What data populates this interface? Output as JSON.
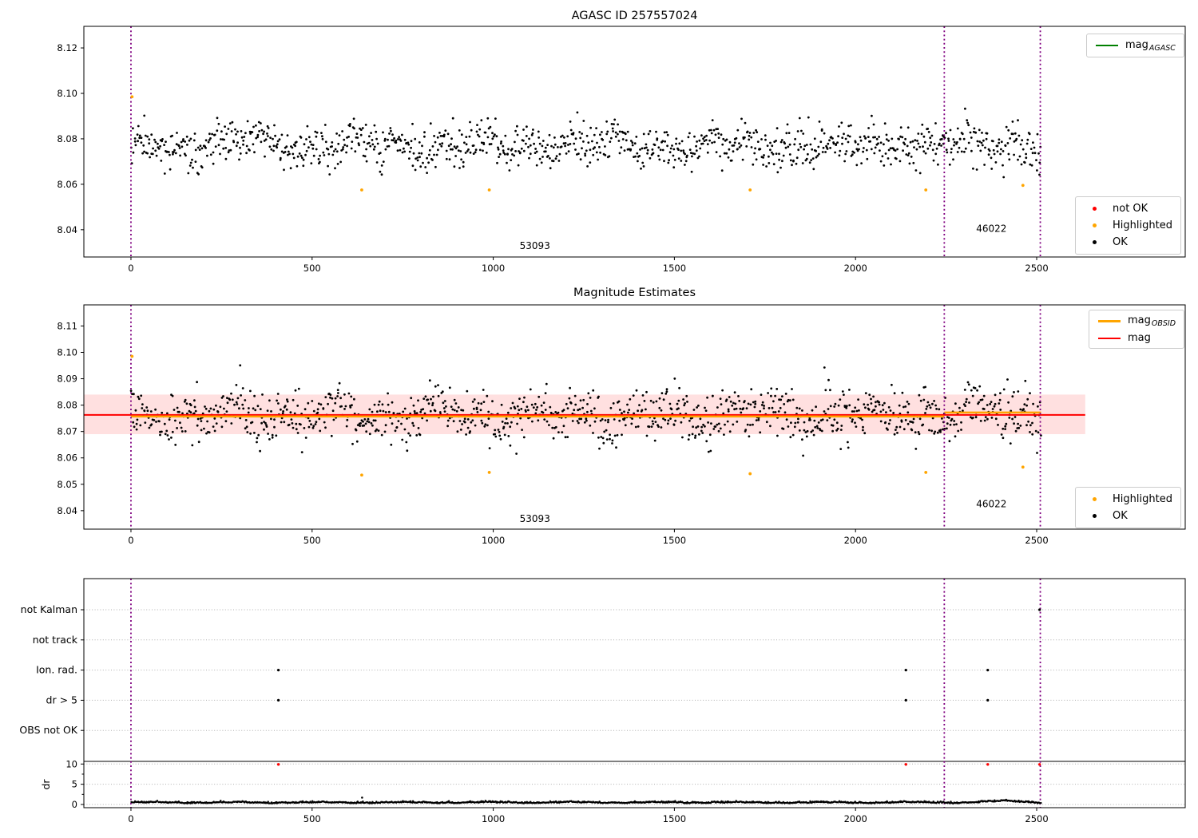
{
  "chart_data": [
    {
      "type": "scatter",
      "title": "AGASC ID 257557024",
      "xlim": [
        -130,
        2910
      ],
      "ylim": [
        8.028,
        8.1295
      ],
      "xticks": [
        0,
        500,
        1000,
        1500,
        2000,
        2500
      ],
      "yticks": [
        8.04,
        8.06,
        8.08,
        8.1,
        8.12
      ],
      "ytick_labels": [
        "8.04",
        "8.06",
        "8.08",
        "8.10",
        "8.12"
      ],
      "vlines": [
        0,
        2245,
        2510
      ],
      "vline_color": "#800080",
      "annotations": [
        {
          "text": "53093",
          "x": 1115,
          "y": 8.033
        },
        {
          "text": "46022",
          "x": 2375,
          "y": 8.0405
        }
      ],
      "ok_color": "#000000",
      "highlighted_color": "#ffa500",
      "not_ok_color": "#ff0000",
      "not_ok_points": [],
      "highlighted_points": [
        [
          3,
          8.0985
        ],
        [
          637,
          8.0575
        ],
        [
          989,
          8.0575
        ],
        [
          1709,
          8.0575
        ],
        [
          2194,
          8.0575
        ],
        [
          2462,
          8.0595
        ]
      ],
      "gen": {
        "seed": 20240601,
        "n": 1150,
        "x0": 0,
        "x1": 2512,
        "mean": 8.0773,
        "std": 0.0047,
        "wave1_amp": 0.0022,
        "wave1_period": 19.3,
        "wave2_amp": 0.0018,
        "wave2_period": 53,
        "ymin": 8.0565,
        "ymax": 8.096,
        "low_outlier_rate": 0.012
      },
      "legend_lines": [
        {
          "label": "mag",
          "sub": "AGASC",
          "color": "#008000"
        }
      ],
      "legend_markers": [
        {
          "label": "not OK",
          "color": "#ff0000"
        },
        {
          "label": "Highlighted",
          "color": "#ffa500"
        },
        {
          "label": "OK",
          "color": "#000000"
        }
      ]
    },
    {
      "type": "scatter",
      "title": "Magnitude Estimates",
      "xlim": [
        -130,
        2910
      ],
      "ylim": [
        8.033,
        8.118
      ],
      "xticks": [
        0,
        500,
        1000,
        1500,
        2000,
        2500
      ],
      "yticks": [
        8.04,
        8.05,
        8.06,
        8.07,
        8.08,
        8.09,
        8.1,
        8.11
      ],
      "ytick_labels": [
        "8.04",
        "8.05",
        "8.06",
        "8.07",
        "8.08",
        "8.09",
        "8.10",
        "8.11"
      ],
      "vlines": [
        0,
        2245,
        2510
      ],
      "vline_color": "#800080",
      "annotations": [
        {
          "text": "53093",
          "x": 1115,
          "y": 8.037
        },
        {
          "text": "46022",
          "x": 2375,
          "y": 8.0425
        }
      ],
      "ok_color": "#000000",
      "highlighted_color": "#ffa500",
      "band": {
        "x0": -130,
        "x1": 2634,
        "y0": 8.069,
        "y1": 8.084,
        "color": "rgba(255,0,0,0.12)"
      },
      "mag_line": {
        "x0": -130,
        "x1": 2634,
        "y": 8.0763,
        "color": "#ff0000"
      },
      "obsid_line": {
        "color": "#ffa500",
        "segments": [
          {
            "x0": 0,
            "x1": 2245,
            "y": 8.0757
          },
          {
            "x0": 2245,
            "x1": 2512,
            "y": 8.0772
          }
        ]
      },
      "highlighted_points": [
        [
          3,
          8.0985
        ],
        [
          637,
          8.0535
        ],
        [
          989,
          8.0545
        ],
        [
          1709,
          8.054
        ],
        [
          2194,
          8.0545
        ],
        [
          2462,
          8.0565
        ]
      ],
      "gen": {
        "seed": 777123,
        "n": 1150,
        "x0": 0,
        "x1": 2512,
        "mean": 8.0764,
        "std": 0.0047,
        "wave1_amp": 0.0022,
        "wave1_period": 21.7,
        "wave2_amp": 0.0018,
        "wave2_period": 47,
        "ymin": 8.0555,
        "ymax": 8.096,
        "low_outlier_rate": 0.012
      },
      "legend_lines": [
        {
          "label": "mag",
          "sub": "OBSID",
          "color": "#ffa500"
        },
        {
          "label": "mag",
          "sub": "",
          "color": "#ff0000"
        }
      ],
      "legend_markers": [
        {
          "label": "Highlighted",
          "color": "#ffa500"
        },
        {
          "label": "OK",
          "color": "#000000"
        }
      ]
    },
    {
      "type": "flags",
      "categories": [
        "not Kalman",
        "not track",
        "Ion. rad.",
        "dr > 5",
        "OBS not OK"
      ],
      "xticks": [
        0,
        500,
        1000,
        1500,
        2000,
        2500
      ],
      "vlines": [
        0,
        2245,
        2510
      ],
      "vline_color": "#800080",
      "flag_color": "#000000",
      "flag_points": [
        {
          "category": "not Kalman",
          "x": [
            2508
          ]
        },
        {
          "category": "not track",
          "x": []
        },
        {
          "category": "Ion. rad.",
          "x": [
            407,
            2139,
            2365
          ]
        },
        {
          "category": "dr > 5",
          "x": [
            407,
            2139,
            2365
          ]
        },
        {
          "category": "OBS not OK",
          "x": []
        }
      ],
      "red_flag_points": {
        "color": "#ff0000",
        "dr": 9.9,
        "x": [
          407,
          2139,
          2365,
          2508
        ]
      },
      "dr_axis": {
        "label": "dr",
        "ticks": [
          10,
          5,
          0
        ],
        "minor_ticks": [
          2.5,
          7.5
        ]
      },
      "separator_dr": 10.65,
      "dr_gen": {
        "seed": 99001,
        "n": 1250,
        "x0": 0,
        "x1": 2512,
        "base": 0.4,
        "noise": 0.16,
        "wave1_amp": 0.1,
        "wave1_period": 37,
        "wave2_amp": 0.06,
        "wave2_period": 9.1,
        "bump_x": 2420,
        "bump_amp": 0.35,
        "bump_width": 60,
        "min": 0.12,
        "max": 1.5
      },
      "dr_outliers": [
        [
          638,
          1.7
        ]
      ]
    }
  ]
}
